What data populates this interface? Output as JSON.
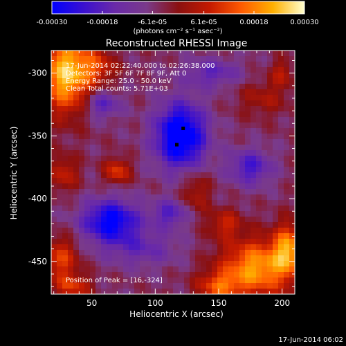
{
  "chart_data": {
    "type": "heatmap",
    "title": "Reconstructed RHESSI Image",
    "xlabel": "Heliocentric X (arcsec)",
    "ylabel": "Heliocentric Y (arcsec)",
    "xlim": [
      18,
      210
    ],
    "ylim": [
      -476,
      -282
    ],
    "x_ticks": [
      50,
      100,
      150,
      200
    ],
    "y_ticks": [
      -300,
      -350,
      -400,
      -450
    ],
    "colorbar": {
      "ticks": [
        "-0.00030",
        "-0.00018",
        "-6.1e-05",
        "6.1e-05",
        "0.00018",
        "0.00030"
      ],
      "tick_values": [
        -0.0003,
        -0.00018,
        -6.1e-05,
        6.1e-05,
        0.00018,
        0.0003
      ],
      "range": [
        -0.0003,
        0.0003
      ],
      "unit_label": "(photons cm⁻² s⁻¹ asec⁻²)",
      "colors": [
        "#0000ff",
        "#3a10d0",
        "#6a2aa8",
        "#7a3a8a",
        "#8a1010",
        "#c41a00",
        "#ff5a00",
        "#ffb000",
        "#ffffd0"
      ]
    },
    "annotations": [
      "17-Jun-2014 02:22:40.000 to 02:26:38.000",
      "Detectors: 3F 5F 6F 7F 8F 9F, Att 0",
      "Energy Range: 25.0 - 50.0 keV",
      "Clean     Total counts: 5.71E+03"
    ],
    "peak_label": "Position of Peak = [16,-324]",
    "markers": [
      [
        122,
        -344
      ],
      [
        117,
        -357
      ]
    ],
    "blobs": [
      {
        "x": 30,
        "y": -300,
        "sx": 14,
        "sy": 22,
        "amp": 0.0003
      },
      {
        "x": 55,
        "y": -295,
        "sx": 10,
        "sy": 10,
        "amp": 0.00012
      },
      {
        "x": 180,
        "y": -455,
        "sx": 20,
        "sy": 16,
        "amp": 0.00026
      },
      {
        "x": 205,
        "y": -440,
        "sx": 8,
        "sy": 14,
        "amp": 0.00022
      },
      {
        "x": 150,
        "y": -470,
        "sx": 12,
        "sy": 8,
        "amp": 0.00016
      },
      {
        "x": 25,
        "y": -448,
        "sx": 10,
        "sy": 12,
        "amp": 0.00016
      },
      {
        "x": 35,
        "y": -470,
        "sx": 10,
        "sy": 7,
        "amp": 0.00014
      },
      {
        "x": 70,
        "y": -378,
        "sx": 7,
        "sy": 7,
        "amp": 0.00016
      },
      {
        "x": 28,
        "y": -380,
        "sx": 8,
        "sy": 10,
        "amp": 0.00012
      },
      {
        "x": 155,
        "y": -420,
        "sx": 9,
        "sy": 8,
        "amp": 0.00012
      },
      {
        "x": 132,
        "y": -395,
        "sx": 8,
        "sy": 12,
        "amp": 0.0001
      },
      {
        "x": 185,
        "y": -320,
        "sx": 14,
        "sy": 10,
        "amp": 8e-05
      },
      {
        "x": 120,
        "y": -350,
        "sx": 14,
        "sy": 18,
        "amp": -0.00032
      },
      {
        "x": 65,
        "y": -418,
        "sx": 16,
        "sy": 12,
        "amp": -0.00026
      },
      {
        "x": 58,
        "y": -325,
        "sx": 10,
        "sy": 8,
        "amp": -0.00014
      },
      {
        "x": 112,
        "y": -412,
        "sx": 10,
        "sy": 8,
        "amp": -0.00014
      },
      {
        "x": 175,
        "y": -375,
        "sx": 12,
        "sy": 10,
        "amp": -0.00016
      },
      {
        "x": 145,
        "y": -300,
        "sx": 16,
        "sy": 8,
        "amp": -0.00012
      },
      {
        "x": 90,
        "y": -440,
        "sx": 20,
        "sy": 10,
        "amp": -0.0001
      },
      {
        "x": 200,
        "y": -300,
        "sx": 6,
        "sy": 8,
        "amp": 0.0001
      }
    ]
  },
  "footer": {
    "timestamp": "17-Jun-2014 06:02"
  }
}
